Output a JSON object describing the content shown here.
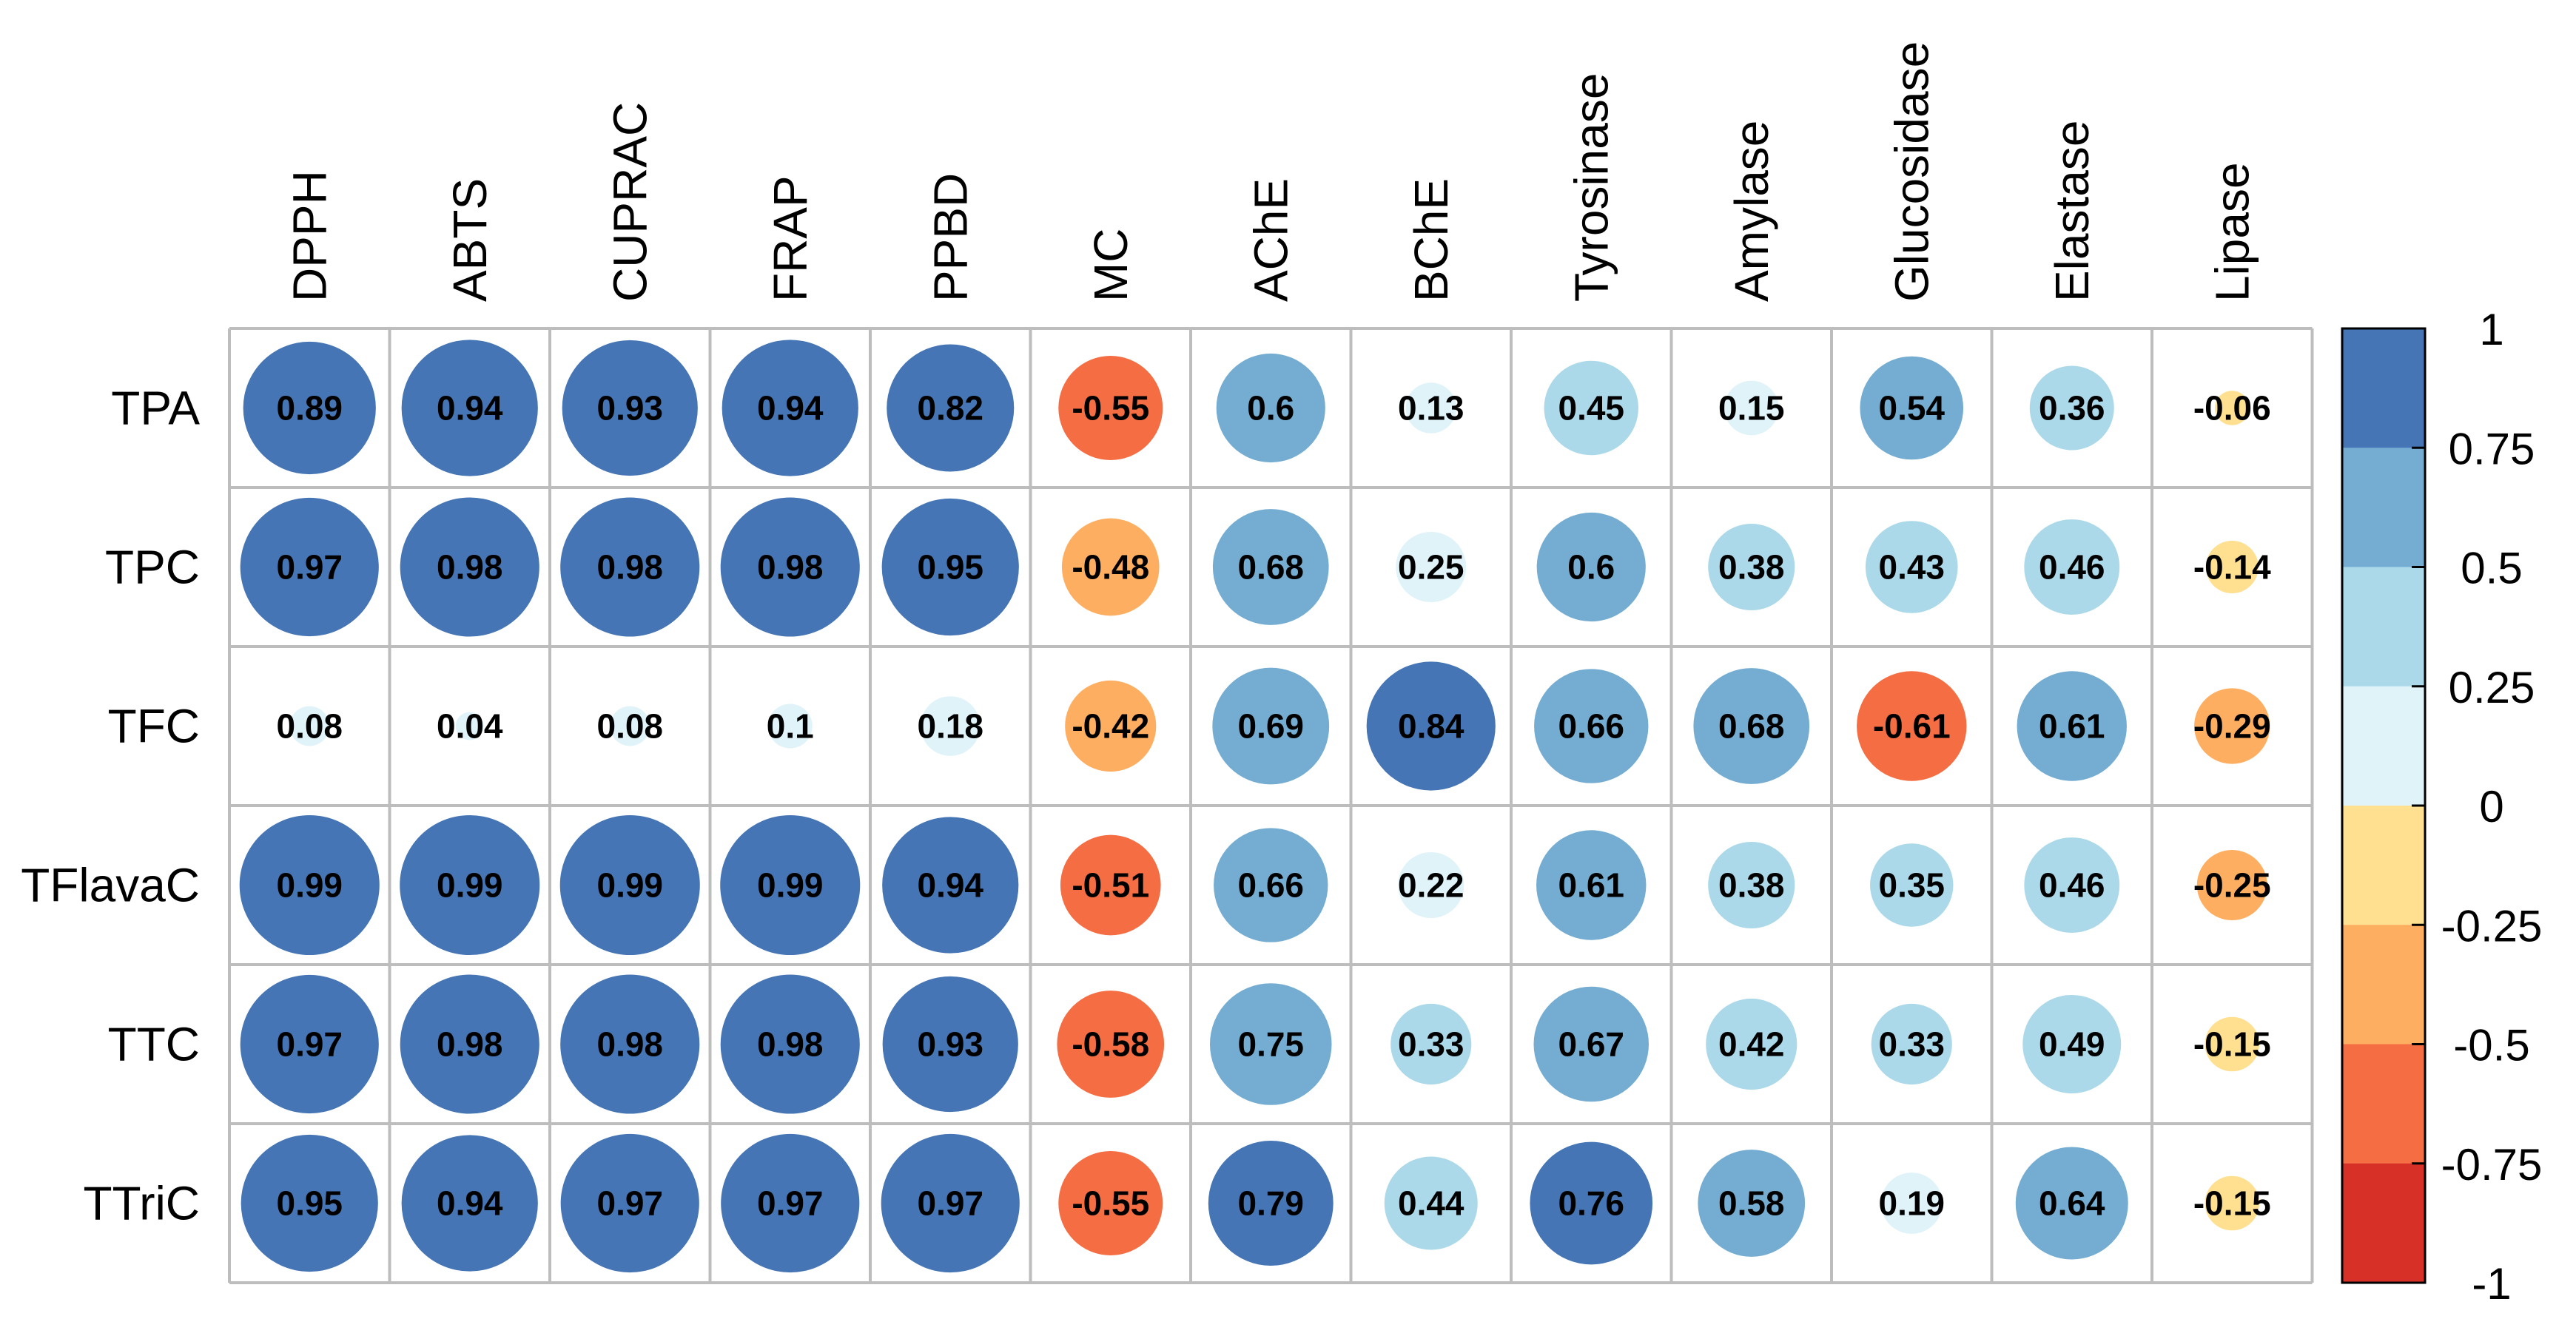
{
  "chart_data": {
    "type": "heatmap",
    "title": "",
    "xlabel": "",
    "ylabel": "",
    "columns": [
      "DPPH",
      "ABTS",
      "CUPRAC",
      "FRAP",
      "PPBD",
      "MC",
      "AChE",
      "BChE",
      "Tyrosinase",
      "Amylase",
      "Glucosidase",
      "Elastase",
      "Lipase"
    ],
    "rows": [
      {
        "name": "TPA",
        "values": [
          0.89,
          0.94,
          0.93,
          0.94,
          0.82,
          -0.55,
          0.6,
          0.13,
          0.45,
          0.15,
          0.54,
          0.36,
          -0.06
        ]
      },
      {
        "name": "TPC",
        "values": [
          0.97,
          0.98,
          0.98,
          0.98,
          0.95,
          -0.48,
          0.68,
          0.25,
          0.6,
          0.38,
          0.43,
          0.46,
          -0.14
        ]
      },
      {
        "name": "TFC",
        "values": [
          0.08,
          0.04,
          0.08,
          0.1,
          0.18,
          -0.42,
          0.69,
          0.84,
          0.66,
          0.68,
          -0.61,
          0.61,
          -0.29
        ]
      },
      {
        "name": "TFlavaC",
        "values": [
          0.99,
          0.99,
          0.99,
          0.99,
          0.94,
          -0.51,
          0.66,
          0.22,
          0.61,
          0.38,
          0.35,
          0.46,
          -0.25
        ]
      },
      {
        "name": "TTC",
        "values": [
          0.97,
          0.98,
          0.98,
          0.98,
          0.93,
          -0.58,
          0.75,
          0.33,
          0.67,
          0.42,
          0.33,
          0.49,
          -0.15
        ]
      },
      {
        "name": "TTriC",
        "values": [
          0.95,
          0.94,
          0.97,
          0.97,
          0.97,
          -0.55,
          0.79,
          0.44,
          0.76,
          0.58,
          0.19,
          0.64,
          -0.15
        ]
      }
    ],
    "value_labels": [
      [
        "0.89",
        "0.94",
        "0.93",
        "0.94",
        "0.82",
        "-0.55",
        "0.6",
        "0.13",
        "0.45",
        "0.15",
        "0.54",
        "0.36",
        "-0.06"
      ],
      [
        "0.97",
        "0.98",
        "0.98",
        "0.98",
        "0.95",
        "-0.48",
        "0.68",
        "0.25",
        "0.6",
        "0.38",
        "0.43",
        "0.46",
        "-0.14"
      ],
      [
        "0.08",
        "0.04",
        "0.08",
        "0.1",
        "0.18",
        "-0.42",
        "0.69",
        "0.84",
        "0.66",
        "0.68",
        "-0.61",
        "0.61",
        "-0.29"
      ],
      [
        "0.99",
        "0.99",
        "0.99",
        "0.99",
        "0.94",
        "-0.51",
        "0.66",
        "0.22",
        "0.61",
        "0.38",
        "0.35",
        "0.46",
        "-0.25"
      ],
      [
        "0.97",
        "0.98",
        "0.98",
        "0.98",
        "0.93",
        "-0.58",
        "0.75",
        "0.33",
        "0.67",
        "0.42",
        "0.33",
        "0.49",
        "-0.15"
      ],
      [
        "0.95",
        "0.94",
        "0.97",
        "0.97",
        "0.97",
        "-0.55",
        "0.79",
        "0.44",
        "0.76",
        "0.58",
        "0.19",
        "0.64",
        "-0.15"
      ]
    ],
    "color_scale": {
      "range": [
        -1,
        1
      ],
      "breaks": [
        -1,
        -0.75,
        -0.5,
        -0.25,
        0,
        0.25,
        0.5,
        0.75,
        1
      ],
      "colors": [
        "#d73027",
        "#f46d43",
        "#fdae61",
        "#fee090",
        "#e0f3f8",
        "#abd9e9",
        "#74add1",
        "#4575b4"
      ],
      "tick_labels": [
        "1",
        "0.75",
        "0.5",
        "0.25",
        "0",
        "-0.25",
        "-0.5",
        "-0.75",
        "-1"
      ]
    },
    "marker": "circle sized by |r|",
    "legend_position": "right",
    "grid": true
  }
}
